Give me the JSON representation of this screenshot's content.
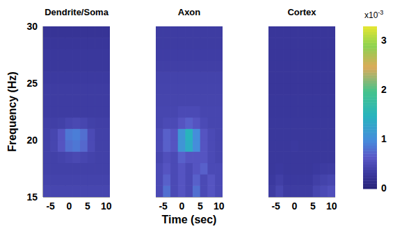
{
  "chart_data": [
    {
      "type": "heatmap",
      "title": "Dendrite/Soma",
      "tick_labels": true,
      "x": [
        -6,
        -4,
        -2,
        0,
        2,
        4,
        6,
        8,
        10
      ],
      "y": [
        15.5,
        16.5,
        17.5,
        18.5,
        19.5,
        20.5,
        21.5,
        22.5,
        23.5,
        24.5,
        25.5,
        26.5,
        27.5,
        28.5,
        29.5
      ],
      "z": [
        [
          0.45,
          0.45,
          0.45,
          0.45,
          0.45,
          0.45,
          0.45,
          0.45,
          0.45
        ],
        [
          0.42,
          0.42,
          0.42,
          0.42,
          0.42,
          0.42,
          0.42,
          0.42,
          0.42
        ],
        [
          0.4,
          0.4,
          0.4,
          0.4,
          0.4,
          0.4,
          0.4,
          0.4,
          0.4
        ],
        [
          0.4,
          0.4,
          0.42,
          0.45,
          0.48,
          0.45,
          0.42,
          0.4,
          0.4
        ],
        [
          0.4,
          0.45,
          0.6,
          0.8,
          0.85,
          0.75,
          0.5,
          0.4,
          0.4
        ],
        [
          0.4,
          0.45,
          0.6,
          0.85,
          0.9,
          0.8,
          0.5,
          0.4,
          0.4
        ],
        [
          0.38,
          0.38,
          0.4,
          0.45,
          0.48,
          0.45,
          0.4,
          0.38,
          0.38
        ],
        [
          0.35,
          0.35,
          0.35,
          0.35,
          0.35,
          0.35,
          0.35,
          0.35,
          0.35
        ],
        [
          0.35,
          0.35,
          0.35,
          0.35,
          0.35,
          0.35,
          0.35,
          0.35,
          0.35
        ],
        [
          0.35,
          0.35,
          0.35,
          0.35,
          0.35,
          0.35,
          0.35,
          0.35,
          0.35
        ],
        [
          0.33,
          0.33,
          0.33,
          0.33,
          0.33,
          0.33,
          0.33,
          0.33,
          0.33
        ],
        [
          0.3,
          0.3,
          0.3,
          0.3,
          0.3,
          0.3,
          0.3,
          0.3,
          0.3
        ],
        [
          0.3,
          0.3,
          0.3,
          0.3,
          0.3,
          0.3,
          0.3,
          0.3,
          0.3
        ],
        [
          0.28,
          0.28,
          0.28,
          0.28,
          0.28,
          0.28,
          0.28,
          0.28,
          0.28
        ],
        [
          0.25,
          0.25,
          0.25,
          0.25,
          0.25,
          0.25,
          0.25,
          0.25,
          0.25
        ]
      ],
      "xlim": [
        -7,
        11
      ],
      "xticks": [
        -5,
        0,
        5,
        10
      ],
      "ylim": [
        15,
        30
      ],
      "yticks": [
        15,
        20,
        25,
        30
      ]
    },
    {
      "type": "heatmap",
      "title": "Axon",
      "tick_labels": "x",
      "x": [
        -6,
        -4,
        -2,
        0,
        2,
        4,
        6,
        8,
        10
      ],
      "y": [
        15.5,
        16.5,
        17.5,
        18.5,
        19.5,
        20.5,
        21.5,
        22.5,
        23.5,
        24.5,
        25.5,
        26.5,
        27.5,
        28.5,
        29.5
      ],
      "z": [
        [
          0.5,
          0.8,
          0.5,
          0.6,
          0.5,
          0.8,
          0.5,
          0.6,
          0.5
        ],
        [
          0.5,
          0.7,
          0.5,
          0.6,
          0.5,
          0.7,
          0.5,
          0.6,
          0.5
        ],
        [
          0.5,
          0.6,
          0.5,
          0.6,
          0.5,
          0.6,
          0.7,
          0.5,
          0.5
        ],
        [
          0.45,
          0.55,
          0.5,
          0.7,
          0.6,
          0.6,
          0.6,
          0.5,
          0.45
        ],
        [
          0.5,
          0.7,
          0.6,
          1.1,
          1.4,
          1.0,
          0.6,
          0.5,
          0.45
        ],
        [
          0.5,
          0.7,
          0.6,
          1.1,
          1.5,
          1.0,
          0.6,
          0.5,
          0.45
        ],
        [
          0.45,
          0.5,
          0.5,
          0.6,
          0.7,
          0.6,
          0.5,
          0.45,
          0.45
        ],
        [
          0.45,
          0.45,
          0.45,
          0.5,
          0.5,
          0.5,
          0.45,
          0.45,
          0.45
        ],
        [
          0.44,
          0.44,
          0.44,
          0.44,
          0.44,
          0.44,
          0.44,
          0.44,
          0.44
        ],
        [
          0.43,
          0.43,
          0.43,
          0.43,
          0.43,
          0.43,
          0.43,
          0.43,
          0.43
        ],
        [
          0.42,
          0.42,
          0.42,
          0.42,
          0.42,
          0.42,
          0.42,
          0.42,
          0.42
        ],
        [
          0.38,
          0.38,
          0.38,
          0.38,
          0.38,
          0.38,
          0.38,
          0.38,
          0.38
        ],
        [
          0.36,
          0.36,
          0.36,
          0.36,
          0.36,
          0.36,
          0.36,
          0.36,
          0.36
        ],
        [
          0.35,
          0.35,
          0.35,
          0.35,
          0.35,
          0.35,
          0.35,
          0.35,
          0.35
        ],
        [
          0.35,
          0.35,
          0.35,
          0.35,
          0.35,
          0.35,
          0.35,
          0.35,
          0.35
        ]
      ],
      "xlim": [
        -7,
        11
      ],
      "xticks": [
        -5,
        0,
        5,
        10
      ],
      "ylim": [
        15,
        30
      ],
      "yticks": [
        15,
        20,
        25,
        30
      ]
    },
    {
      "type": "heatmap",
      "title": "Cortex",
      "tick_labels": "x",
      "x": [
        -6,
        -4,
        -2,
        0,
        2,
        4,
        6,
        8,
        10
      ],
      "y": [
        15.5,
        16.5,
        17.5,
        18.5,
        19.5,
        20.5,
        21.5,
        22.5,
        23.5,
        24.5,
        25.5,
        26.5,
        27.5,
        28.5,
        29.5
      ],
      "z": [
        [
          0.35,
          0.45,
          0.35,
          0.35,
          0.35,
          0.35,
          0.45,
          0.5,
          0.55
        ],
        [
          0.32,
          0.38,
          0.32,
          0.32,
          0.32,
          0.32,
          0.38,
          0.42,
          0.45
        ],
        [
          0.3,
          0.32,
          0.3,
          0.3,
          0.3,
          0.3,
          0.32,
          0.34,
          0.35
        ],
        [
          0.3,
          0.3,
          0.3,
          0.3,
          0.3,
          0.3,
          0.3,
          0.3,
          0.3
        ],
        [
          0.3,
          0.3,
          0.3,
          0.32,
          0.3,
          0.3,
          0.3,
          0.3,
          0.3
        ],
        [
          0.3,
          0.3,
          0.3,
          0.3,
          0.3,
          0.3,
          0.3,
          0.3,
          0.3
        ],
        [
          0.3,
          0.3,
          0.3,
          0.3,
          0.3,
          0.3,
          0.3,
          0.3,
          0.3
        ],
        [
          0.29,
          0.29,
          0.29,
          0.29,
          0.29,
          0.29,
          0.29,
          0.29,
          0.29
        ],
        [
          0.29,
          0.29,
          0.29,
          0.29,
          0.29,
          0.29,
          0.29,
          0.29,
          0.29
        ],
        [
          0.28,
          0.28,
          0.28,
          0.28,
          0.28,
          0.28,
          0.28,
          0.28,
          0.28
        ],
        [
          0.28,
          0.28,
          0.28,
          0.28,
          0.28,
          0.28,
          0.28,
          0.28,
          0.28
        ],
        [
          0.28,
          0.28,
          0.28,
          0.28,
          0.28,
          0.28,
          0.28,
          0.28,
          0.28
        ],
        [
          0.28,
          0.28,
          0.28,
          0.28,
          0.28,
          0.28,
          0.28,
          0.28,
          0.28
        ],
        [
          0.28,
          0.28,
          0.28,
          0.28,
          0.28,
          0.28,
          0.28,
          0.28,
          0.28
        ],
        [
          0.28,
          0.28,
          0.28,
          0.28,
          0.28,
          0.28,
          0.28,
          0.28,
          0.28
        ]
      ],
      "xlim": [
        -7,
        11
      ],
      "xticks": [
        -5,
        0,
        5,
        10
      ],
      "ylim": [
        15,
        30
      ],
      "yticks": [
        15,
        20,
        25,
        30
      ]
    }
  ],
  "x_label": "Time (sec)",
  "y_label": "Frequency (Hz)",
  "colorbar": {
    "range": [
      0,
      3.3
    ],
    "ticks": [
      0,
      1,
      2,
      3
    ],
    "label": "x10",
    "exponent": "-3"
  }
}
